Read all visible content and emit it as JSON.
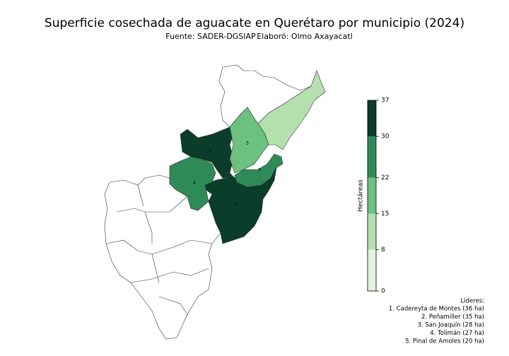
{
  "title": "Superficie cosechada de aguacate en Querétaro por municipio (2024)",
  "source": "Fuente: SADER-DGSIAP",
  "author": "Elaboró: Olmo Axayacatl",
  "colorbar": {
    "label": "Hectáreas",
    "ticks": [
      0,
      8,
      15,
      22,
      30,
      37
    ],
    "colors": [
      "#e2f4de",
      "#b3e0ad",
      "#6cc080",
      "#2e8b57",
      "#0a3d2a"
    ]
  },
  "regions": [
    {
      "label": "1",
      "value": 36
    },
    {
      "label": "2",
      "value": 35
    },
    {
      "label": "3",
      "value": 28
    },
    {
      "label": "4",
      "value": 27
    },
    {
      "label": "5",
      "value": 20
    },
    {
      "label": null,
      "value": 10
    }
  ],
  "leaders": {
    "title": "Líderes:",
    "items": [
      "1. Cadereyta de Montes (36 ha)",
      "2. Peñamiller (35 ha)",
      "3. San Joaquín (28 ha)",
      "4. Tolimán (27 ha)",
      "5. Pinal de Amoles (20 ha)"
    ]
  }
}
